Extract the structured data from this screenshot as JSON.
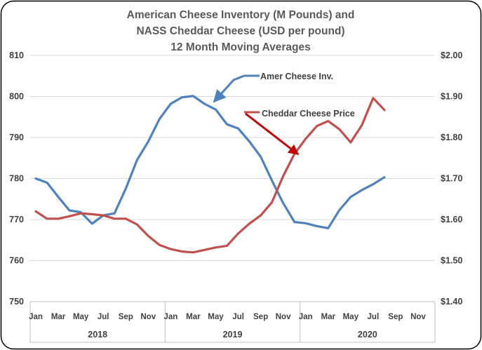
{
  "chart_data": {
    "type": "line",
    "title_lines": [
      "American Cheese Inventory (M Pounds) and",
      "NASS Cheddar Cheese (USD per pound)",
      "12 Month Moving Averages"
    ],
    "ylim_left": [
      750,
      810
    ],
    "yticks_left": [
      "750",
      "760",
      "770",
      "780",
      "790",
      "800",
      "810"
    ],
    "ylim_right": [
      1.4,
      2.0
    ],
    "yticks_right": [
      "$1.40",
      "$1.50",
      "$1.60",
      "$1.70",
      "$1.80",
      "$1.90",
      "$2.00"
    ],
    "xtick_labels": [
      "Jan",
      "Mar",
      "May",
      "Jul",
      "Sep",
      "Nov",
      "Jan",
      "Mar",
      "May",
      "Jul",
      "Sep",
      "Nov",
      "Jan",
      "Mar",
      "May",
      "Jul",
      "Sep",
      "Nov"
    ],
    "year_labels": [
      "2018",
      "2019",
      "2020"
    ],
    "months_total": 36,
    "series": [
      {
        "name": "Amer Cheese Inv.",
        "axis": "left",
        "color": "#4f81bd",
        "values": [
          780.0,
          779.0,
          775.5,
          772.2,
          771.8,
          769.0,
          771.0,
          771.5,
          777.5,
          784.5,
          789.0,
          794.5,
          798.2,
          799.8,
          800.1,
          798.2,
          796.8,
          793.2,
          792.2,
          789.0,
          785.3,
          779.5,
          774.0,
          769.4,
          769.1,
          768.4,
          767.9,
          772.3,
          775.5,
          777.2,
          778.6,
          780.3
        ]
      },
      {
        "name": "Cheddar Cheese Price",
        "axis": "right",
        "color": "#c0504d",
        "values": [
          1.62,
          1.602,
          1.602,
          1.608,
          1.615,
          1.613,
          1.61,
          1.602,
          1.602,
          1.588,
          1.56,
          1.538,
          1.528,
          1.522,
          1.52,
          1.526,
          1.532,
          1.536,
          1.566,
          1.59,
          1.61,
          1.642,
          1.706,
          1.76,
          1.797,
          1.828,
          1.84,
          1.82,
          1.788,
          1.83,
          1.896,
          1.867
        ]
      }
    ],
    "annotations": [
      {
        "label": "Amer Cheese Inv.",
        "series": 0,
        "color": "#4f81bd"
      },
      {
        "label": "Cheddar Cheese Price",
        "series": 1,
        "color": "#c0504d"
      }
    ]
  }
}
